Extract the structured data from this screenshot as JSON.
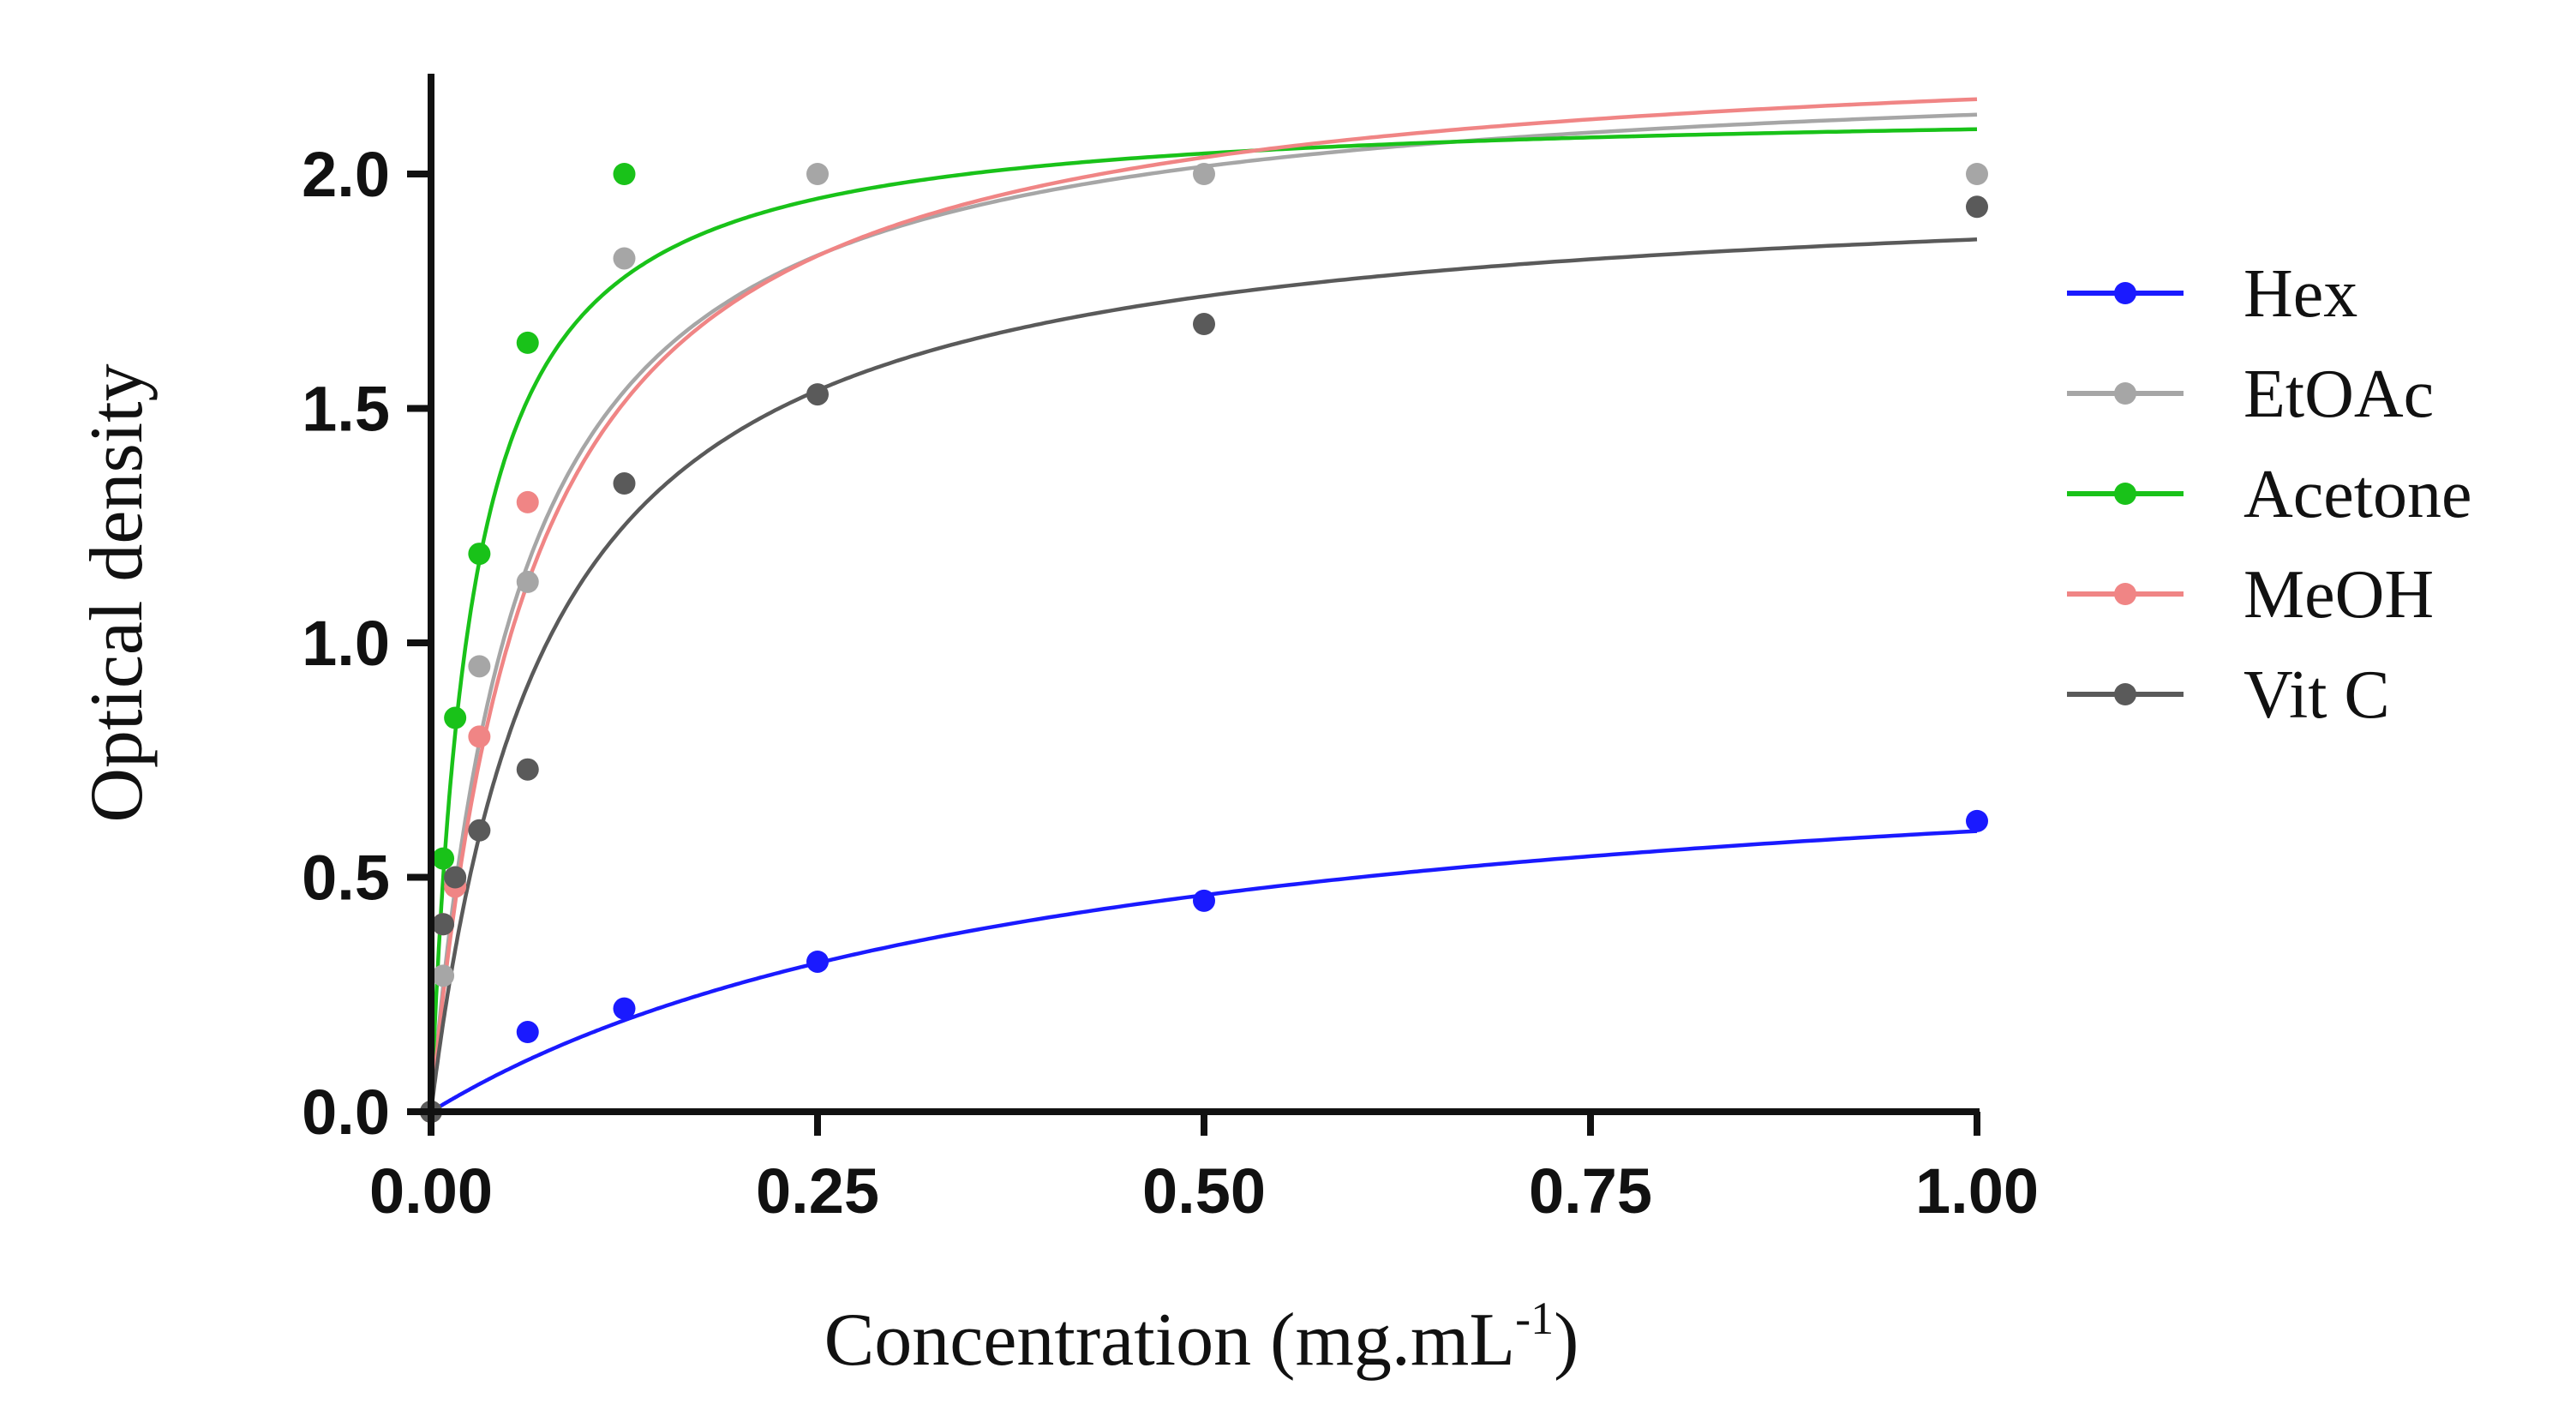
{
  "chart_data": {
    "type": "scatter",
    "title": "",
    "xlabel": "Concentration (mg.mL",
    "xlabel_superscript": "-1",
    "xlabel_close": ")",
    "ylabel": "Optical density",
    "xlim": [
      0,
      1
    ],
    "ylim": [
      0,
      2.2
    ],
    "x_ticks": [
      "0.00",
      "0.25",
      "0.50",
      "0.75",
      "1.00"
    ],
    "x_tick_values": [
      0,
      0.25,
      0.5,
      0.75,
      1.0
    ],
    "y_ticks": [
      "0.0",
      "0.5",
      "1.0",
      "1.5",
      "2.0"
    ],
    "y_tick_values": [
      0,
      0.5,
      1.0,
      1.5,
      2.0
    ],
    "grid": false,
    "legend_position": "right",
    "fit": "hyperbolic (Vmax*x/(K+x))",
    "series": [
      {
        "name": "Hex",
        "color": "#1a1aff",
        "x": [
          0,
          0.0625,
          0.125,
          0.25,
          0.5,
          1.0
        ],
        "y": [
          0,
          0.17,
          0.22,
          0.32,
          0.45,
          0.62
        ],
        "fit_params": {
          "vmax": 0.85,
          "k": 0.42
        }
      },
      {
        "name": "EtOAc",
        "color": "#a6a6a6",
        "x": [
          0,
          0.0078,
          0.0156,
          0.03125,
          0.0625,
          0.125,
          0.25,
          0.5,
          1.0
        ],
        "y": [
          0,
          0.29,
          0.49,
          0.95,
          1.13,
          1.82,
          2.0,
          2.0,
          2.0
        ],
        "fit_params": {
          "vmax": 2.25,
          "k": 0.058
        }
      },
      {
        "name": "Acetone",
        "color": "#19c219",
        "x": [
          0,
          0.0078,
          0.0156,
          0.03125,
          0.0625,
          0.125
        ],
        "y": [
          0,
          0.54,
          0.84,
          1.19,
          1.64,
          2.0
        ],
        "fit_params": {
          "vmax": 2.15,
          "k": 0.026
        }
      },
      {
        "name": "MeOH",
        "color": "#f08585",
        "x": [
          0,
          0.0078,
          0.0156,
          0.03125,
          0.0625
        ],
        "y": [
          0,
          0.4,
          0.48,
          0.8,
          1.3
        ],
        "fit_params": {
          "vmax": 2.3,
          "k": 0.065
        }
      },
      {
        "name": "Vit C",
        "color": "#5a5a5a",
        "x": [
          0,
          0.0078,
          0.0156,
          0.03125,
          0.0625,
          0.125,
          0.25,
          0.5,
          1.0
        ],
        "y": [
          0,
          0.4,
          0.5,
          0.6,
          0.73,
          1.34,
          1.53,
          1.68,
          1.93
        ],
        "fit_params": {
          "vmax": 2.0,
          "k": 0.075
        }
      }
    ]
  }
}
